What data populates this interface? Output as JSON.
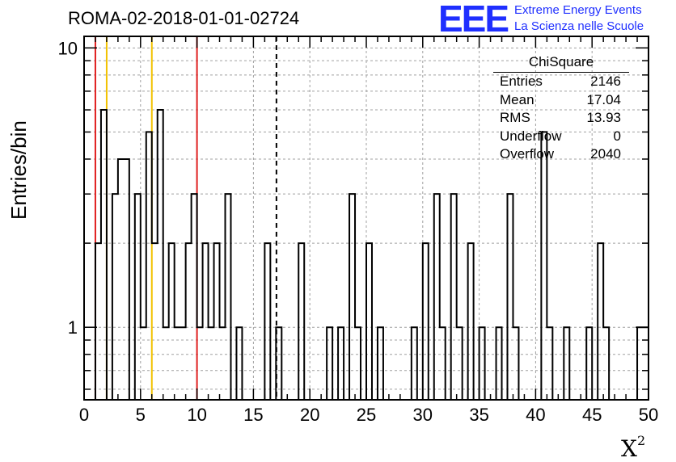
{
  "header": {
    "title": "ROMA-02-2018-01-01-02724",
    "logo_text": "EEE",
    "brand_line1": "Extreme Energy Events",
    "brand_line2": "La Scienza nelle Scuole"
  },
  "stats_box": {
    "title": "ChiSquare",
    "rows": [
      {
        "label": "Entries",
        "value": "2146"
      },
      {
        "label": "Mean",
        "value": "17.04"
      },
      {
        "label": "RMS",
        "value": "13.93"
      },
      {
        "label": "Underflow",
        "value": "0"
      },
      {
        "label": "Overflow",
        "value": "2040"
      }
    ]
  },
  "chart_data": {
    "type": "histogram",
    "title": "ROMA-02-2018-01-01-02724",
    "xlabel": "X",
    "xlabel_superscript": "2",
    "ylabel": "Entries/bin",
    "xlim": [
      0,
      50
    ],
    "ylim": [
      0.55,
      11
    ],
    "yscale": "log",
    "grid": true,
    "bin_width": 0.5,
    "x_ticks": [
      0,
      5,
      10,
      15,
      20,
      25,
      30,
      35,
      40,
      45,
      50
    ],
    "y_ticks": [
      1,
      10
    ],
    "bins": [
      {
        "x": 1.0,
        "y": 2
      },
      {
        "x": 1.5,
        "y": 6
      },
      {
        "x": 2.0,
        "y": 0
      },
      {
        "x": 2.5,
        "y": 3
      },
      {
        "x": 3.0,
        "y": 4
      },
      {
        "x": 3.5,
        "y": 4
      },
      {
        "x": 4.0,
        "y": 0
      },
      {
        "x": 4.5,
        "y": 3
      },
      {
        "x": 5.0,
        "y": 1
      },
      {
        "x": 5.5,
        "y": 5
      },
      {
        "x": 6.0,
        "y": 2
      },
      {
        "x": 6.5,
        "y": 6
      },
      {
        "x": 7.0,
        "y": 1
      },
      {
        "x": 7.5,
        "y": 2
      },
      {
        "x": 8.0,
        "y": 1
      },
      {
        "x": 8.5,
        "y": 1
      },
      {
        "x": 9.0,
        "y": 2
      },
      {
        "x": 9.5,
        "y": 3
      },
      {
        "x": 10.0,
        "y": 1
      },
      {
        "x": 10.5,
        "y": 2
      },
      {
        "x": 11.0,
        "y": 1
      },
      {
        "x": 11.5,
        "y": 2
      },
      {
        "x": 12.0,
        "y": 1
      },
      {
        "x": 12.5,
        "y": 3
      },
      {
        "x": 13.5,
        "y": 1
      },
      {
        "x": 16.0,
        "y": 2
      },
      {
        "x": 17.0,
        "y": 1
      },
      {
        "x": 19.0,
        "y": 2
      },
      {
        "x": 21.5,
        "y": 1
      },
      {
        "x": 22.5,
        "y": 1
      },
      {
        "x": 23.5,
        "y": 3
      },
      {
        "x": 24.0,
        "y": 1
      },
      {
        "x": 25.0,
        "y": 2
      },
      {
        "x": 26.0,
        "y": 1
      },
      {
        "x": 29.0,
        "y": 1
      },
      {
        "x": 30.0,
        "y": 2
      },
      {
        "x": 31.0,
        "y": 3
      },
      {
        "x": 31.5,
        "y": 1
      },
      {
        "x": 32.5,
        "y": 3
      },
      {
        "x": 33.0,
        "y": 1
      },
      {
        "x": 34.0,
        "y": 2
      },
      {
        "x": 35.0,
        "y": 1
      },
      {
        "x": 36.5,
        "y": 1
      },
      {
        "x": 37.5,
        "y": 3
      },
      {
        "x": 38.0,
        "y": 1
      },
      {
        "x": 40.5,
        "y": 5
      },
      {
        "x": 41.0,
        "y": 1
      },
      {
        "x": 42.5,
        "y": 1
      },
      {
        "x": 44.5,
        "y": 1
      },
      {
        "x": 45.5,
        "y": 2
      },
      {
        "x": 46.0,
        "y": 1
      },
      {
        "x": 49.0,
        "y": 1
      },
      {
        "x": 49.5,
        "y": 1
      }
    ],
    "reference_lines": [
      {
        "x": 1,
        "color": "#e02020",
        "style": "solid"
      },
      {
        "x": 2,
        "color": "#f2c200",
        "style": "solid"
      },
      {
        "x": 6,
        "color": "#f2c200",
        "style": "solid"
      },
      {
        "x": 10,
        "color": "#e02020",
        "style": "solid"
      },
      {
        "x": 17.04,
        "color": "#000000",
        "style": "dashed"
      }
    ],
    "colors": {
      "histogram": "#000000",
      "grid": "#a0a0a0",
      "logo": "#1f2fff"
    }
  }
}
